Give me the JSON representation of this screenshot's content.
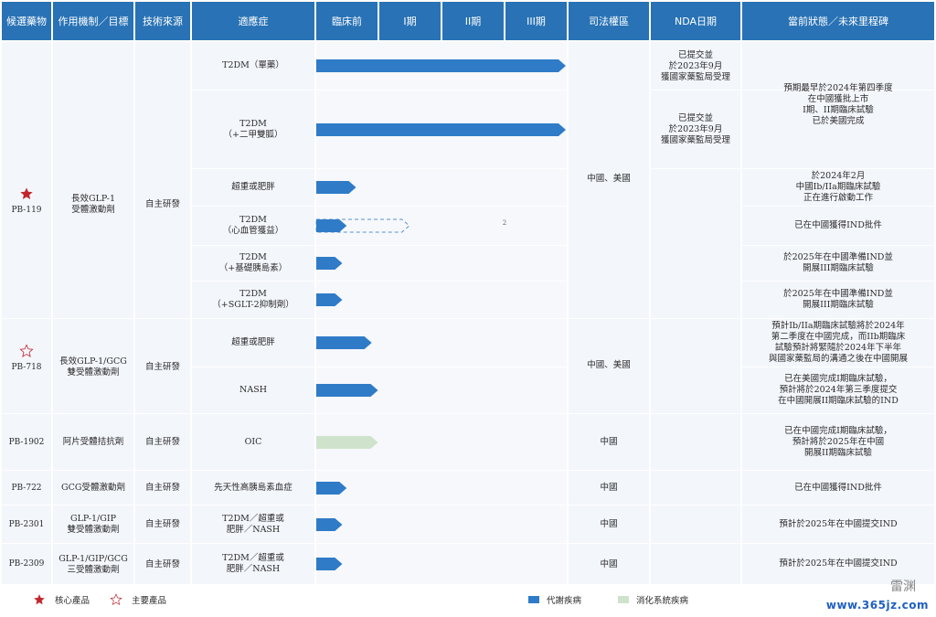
{
  "headers": {
    "drug": "候選藥物",
    "mechanism": "作用機制／目標",
    "source": "技術來源",
    "indication": "適應症",
    "preclinical": "臨床前",
    "phase1": "I期",
    "phase2": "II期",
    "phase3": "III期",
    "jurisdiction": "司法權區",
    "nda": "NDA日期",
    "status": "當前狀態／未來里程碑"
  },
  "drugs": {
    "pb119": {
      "name": "PB-119",
      "mechanism": "長效GLP-1\n受體激動劑",
      "source": "自主研發"
    },
    "pb718": {
      "name": "PB-718",
      "mechanism": "長效GLP-1/GCG\n雙受體激動劑",
      "source": "自主研發"
    },
    "pb1902": {
      "name": "PB-1902",
      "mechanism": "阿片受體拮抗劑",
      "source": "自主研發"
    },
    "pb722": {
      "name": "PB-722",
      "mechanism": "GCG受體激動劑",
      "source": "自主研發"
    },
    "pb2301": {
      "name": "PB-2301",
      "mechanism": "GLP-1/GIP\n雙受體激動劑",
      "source": "自主研發"
    },
    "pb2309": {
      "name": "PB-2309",
      "mechanism": "GLP-1/GIP/GCG\n三受體激動劑",
      "source": "自主研發"
    }
  },
  "indications": {
    "r1": "T2DM（單藥）",
    "r2": "T2DM\n（+二甲雙胍）",
    "r3": "超重或肥胖",
    "r4": "T2DM\n（心血管獲益）",
    "r5": "T2DM\n（+基礎胰島素）",
    "r6": "T2DM\n（+SGLT-2抑制劑）",
    "r7": "超重或肥胖",
    "r8": "NASH",
    "r9": "OIC",
    "r10": "先天性高胰島素血症",
    "r11": "T2DM／超重或\n肥胖／NASH",
    "r12": "T2DM／超重或\n肥胖／NASH"
  },
  "jurisdictions": {
    "pb119": "中國、美國",
    "pb718": "中國、美國",
    "pb1902": "中國",
    "pb722": "中國",
    "pb2301": "中國",
    "pb2309": "中國"
  },
  "nda": {
    "r1": "已提交並\n於2023年9月\n獲國家藥監局受理",
    "r2": "已提交並\n於2023年9月\n獲國家藥監局受理"
  },
  "status": {
    "r12": "預期最早於2024年第四季度\n在中國獲批上市\nI期、II期臨床試驗\n已於美國完成",
    "r3": "於2024年2月\n中國Ib/IIa期臨床試驗\n正在進行啟動工作",
    "r4": "已在中國獲得IND批件",
    "r5": "於2025年在中國準備IND並\n開展III期臨床試驗",
    "r6": "於2025年在中國準備IND並\n開展III期臨床試驗",
    "r7": "預計Ib/IIa期臨床試驗將於2024年\n第二季度在中國完成，而IIb期臨床\n試驗預計將緊隨於2024年下半年\n與國家藥監局的溝通之後在中國開展",
    "r8": "已在美國完成I期臨床試驗，\n預計將於2024年第三季度提交\n在中國開展II期臨床試驗的IND",
    "r9": "已在中國完成I期臨床試驗，\n預計將於2025年在中國\n開展II期臨床試驗",
    "r10": "已在中國獲得IND批件",
    "r11": "預計於2025年在中國提交IND",
    "r12b": "預計於2025年在中國提交IND"
  },
  "footnote_marker": "2",
  "progress": {
    "r1": 4.0,
    "r2": 4.0,
    "r3": 0.65,
    "r4": 0.5,
    "r4_dashed": 1.5,
    "r5": 0.43,
    "r6": 0.43,
    "r7": 0.9,
    "r8": 1.0,
    "r9": 1.0,
    "r10": 0.5,
    "r11": 0.43,
    "r12": 0.43
  },
  "legend": {
    "core": "核心產品",
    "main": "主要產品",
    "metabolic": "代謝疾病",
    "digestive": "消化系統疾病"
  },
  "colors": {
    "header": "#2872b5",
    "metabolic": "#2f7bc8",
    "digestive": "#cfe3cc",
    "star": "#c0272d"
  },
  "watermark": "www.365jz.com",
  "watermark_logo": "雷渊"
}
